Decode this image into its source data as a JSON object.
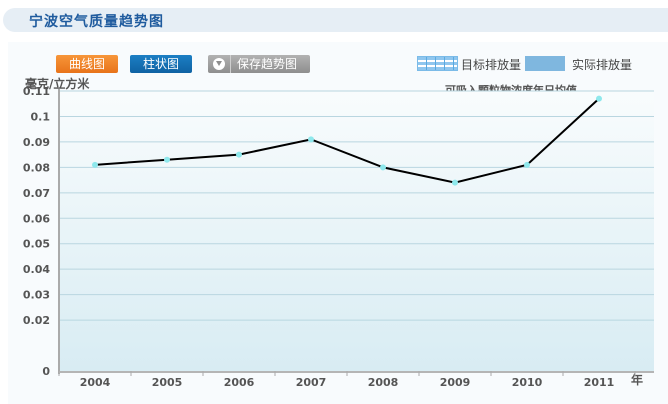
{
  "header": {
    "title": "宁波空气质量趋势图"
  },
  "toolbar": {
    "line_chart_label": "曲线图",
    "bar_chart_label": "柱状图",
    "save_label": "保存趋势图",
    "save_icon": "download-icon"
  },
  "legend": {
    "items": [
      {
        "label": "目标排放量",
        "style": "striped",
        "color": "#8fc6ee"
      },
      {
        "label": "实际排放量",
        "style": "solid",
        "color": "#7fb7df"
      }
    ]
  },
  "colors": {
    "title_text": "#1f5b9e",
    "line_button": "#f08527",
    "bar_button": "#1670b4",
    "save_button": "#a0a0a0",
    "series_line": "#000000",
    "marker": "#8ee8ec",
    "plot_top": "#f9fcfd",
    "plot_bottom": "#d8ecf3",
    "gridline": "#b9d6e0"
  },
  "chart_data": {
    "type": "line",
    "title": "可吸入颗粒物浓度年日均值",
    "xlabel": "年",
    "ylabel": "毫克/立方米",
    "categories": [
      "2004",
      "2005",
      "2006",
      "2007",
      "2008",
      "2009",
      "2010",
      "2011"
    ],
    "series": [
      {
        "name": "可吸入颗粒物浓度年日均值",
        "values": [
          0.081,
          0.083,
          0.085,
          0.091,
          0.08,
          0.074,
          0.081,
          0.107
        ]
      }
    ],
    "yticks": [
      "0",
      "0.02",
      "0.03",
      "0.04",
      "0.05",
      "0.06",
      "0.07",
      "0.08",
      "0.09",
      "0.1",
      "0.11"
    ],
    "ytick_values": [
      0,
      0.02,
      0.03,
      0.04,
      0.05,
      0.06,
      0.07,
      0.08,
      0.09,
      0.1,
      0.11
    ],
    "ylim": [
      0,
      0.11
    ],
    "grid": true,
    "legend_position": "top-right"
  }
}
